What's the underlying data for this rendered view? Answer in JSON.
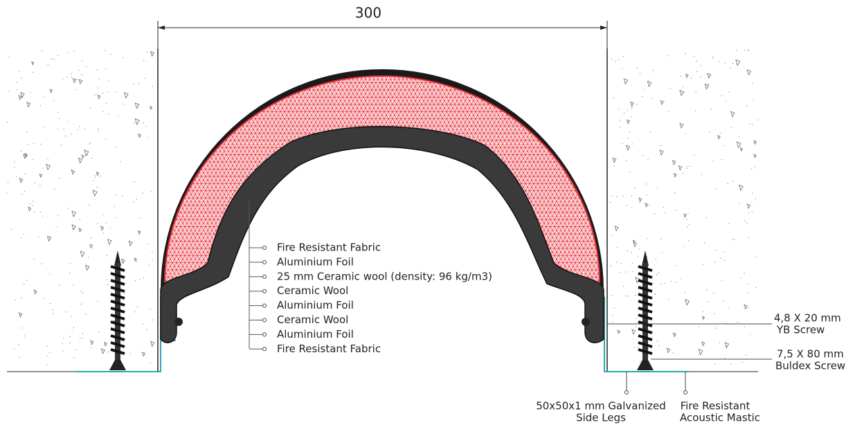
{
  "dimension": {
    "label": "300"
  },
  "layers": [
    "Fire Resistant Fabric",
    "Aluminium Foil",
    "25 mm Ceramic wool (density: 96 kg/m3)",
    "Ceramic Wool",
    "Aluminium Foil",
    "Ceramic Wool",
    "Aluminium Foil",
    "Fire Resistant Fabric"
  ],
  "callouts": {
    "yb_screw": [
      "4,8 X 20 mm",
      "YB Screw"
    ],
    "buldex_screw": [
      "7,5 X 80 mm",
      "Buldex Screw"
    ],
    "side_legs": [
      "50x50x1 mm Galvanized",
      "Side Legs"
    ],
    "mastic": [
      "Fire Resistant",
      "Acoustic Mastic"
    ]
  }
}
